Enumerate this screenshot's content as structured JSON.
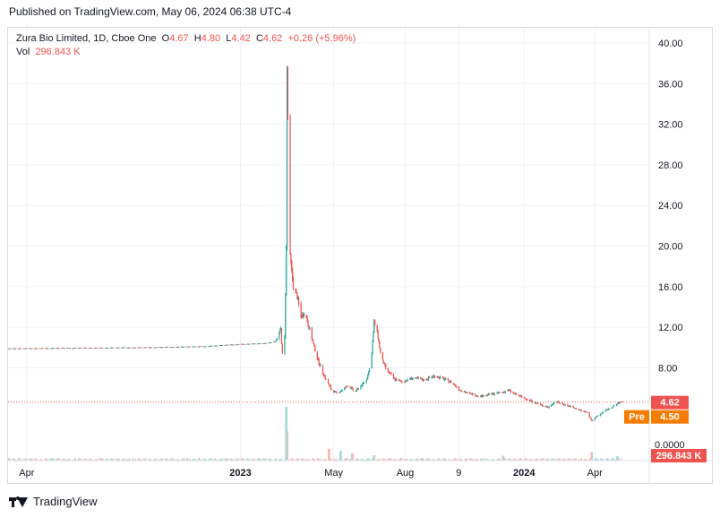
{
  "header": {
    "published": "Published on TradingView.com, May 06, 2024 06:38 UTC-4"
  },
  "legend": {
    "symbol": "Zura Bio Limited, 1D, Cboe One",
    "o_label": "O",
    "o_value": "4.67",
    "h_label": "H",
    "h_value": "4.80",
    "l_label": "L",
    "l_value": "4.42",
    "c_label": "C",
    "c_value": "4.62",
    "change": "+0.26 (+5.96%)",
    "vol_label": "Vol",
    "vol_value": "296.843 K"
  },
  "footer": {
    "brand": "TradingView"
  },
  "colors": {
    "up": "#26a69a",
    "down": "#ef5350",
    "premarket": "#f57c00",
    "grid": "#f0f3fa",
    "axis_text": "#131722"
  },
  "chart_data": {
    "type": "candlestick",
    "y_axis": {
      "ticks": [
        "40.00",
        "36.00",
        "32.00",
        "28.00",
        "24.00",
        "20.00",
        "16.00",
        "12.00",
        "8.00"
      ],
      "range": [
        0,
        41
      ],
      "volume_zero_label": "0.0000"
    },
    "x_axis": {
      "tick_labels": [
        {
          "label": "Apr",
          "date": "2022-04-01",
          "bold": false
        },
        {
          "label": "2023",
          "date": "2023-01-01",
          "bold": true
        },
        {
          "label": "May",
          "date": "2023-05-01",
          "bold": false
        },
        {
          "label": "Aug",
          "date": "2023-08-01",
          "bold": false
        },
        {
          "label": "9",
          "date": "2023-10-09",
          "bold": false
        },
        {
          "label": "2024",
          "date": "2024-01-01",
          "bold": true
        },
        {
          "label": "Apr",
          "date": "2024-04-01",
          "bold": false
        }
      ],
      "range": [
        "2022-03-08",
        "2024-06-10"
      ]
    },
    "last_price": {
      "label": "4.62",
      "value": 4.62
    },
    "premarket": {
      "tag": "Pre",
      "label": "4.50",
      "value": 4.5
    },
    "volume_label": "296.843 K",
    "price_path": [
      [
        "2022-03-08",
        9.9
      ],
      [
        "2022-06-01",
        9.95
      ],
      [
        "2022-09-01",
        10.0
      ],
      [
        "2022-11-15",
        10.1
      ],
      [
        "2022-12-25",
        10.3
      ],
      [
        "2023-02-01",
        10.4
      ],
      [
        "2023-02-15",
        10.6
      ],
      [
        "2023-02-22",
        11.8
      ],
      [
        "2023-02-25",
        8.0
      ],
      [
        "2023-02-27",
        11.0
      ],
      [
        "2023-03-01",
        20.0
      ],
      [
        "2023-03-02",
        37.5
      ],
      [
        "2023-03-04",
        28.0
      ],
      [
        "2023-03-06",
        19.0
      ],
      [
        "2023-03-10",
        16.0
      ],
      [
        "2023-03-15",
        15.0
      ],
      [
        "2023-03-20",
        13.0
      ],
      [
        "2023-03-25",
        13.5
      ],
      [
        "2023-03-30",
        12.0
      ],
      [
        "2023-04-06",
        10.0
      ],
      [
        "2023-04-12",
        8.5
      ],
      [
        "2023-04-20",
        7.0
      ],
      [
        "2023-04-28",
        5.8
      ],
      [
        "2023-05-05",
        5.5
      ],
      [
        "2023-05-12",
        5.8
      ],
      [
        "2023-05-20",
        6.3
      ],
      [
        "2023-05-28",
        5.6
      ],
      [
        "2023-06-05",
        6.2
      ],
      [
        "2023-06-12",
        6.8
      ],
      [
        "2023-06-18",
        8.5
      ],
      [
        "2023-06-22",
        12.5
      ],
      [
        "2023-06-26",
        11.5
      ],
      [
        "2023-07-01",
        9.0
      ],
      [
        "2023-07-08",
        7.8
      ],
      [
        "2023-07-18",
        6.9
      ],
      [
        "2023-07-28",
        6.6
      ],
      [
        "2023-08-10",
        7.0
      ],
      [
        "2023-08-25",
        6.8
      ],
      [
        "2023-09-08",
        7.2
      ],
      [
        "2023-09-20",
        6.9
      ],
      [
        "2023-10-01",
        6.5
      ],
      [
        "2023-10-09",
        5.9
      ],
      [
        "2023-10-20",
        5.5
      ],
      [
        "2023-11-05",
        5.2
      ],
      [
        "2023-11-20",
        5.4
      ],
      [
        "2023-12-05",
        5.6
      ],
      [
        "2023-12-12",
        5.8
      ],
      [
        "2023-12-20",
        5.4
      ],
      [
        "2024-01-05",
        4.9
      ],
      [
        "2024-01-20",
        4.4
      ],
      [
        "2024-02-01",
        4.1
      ],
      [
        "2024-02-10",
        4.7
      ],
      [
        "2024-02-25",
        4.3
      ],
      [
        "2024-03-10",
        3.9
      ],
      [
        "2024-03-22",
        3.6
      ],
      [
        "2024-03-28",
        2.8
      ],
      [
        "2024-04-05",
        3.3
      ],
      [
        "2024-04-15",
        3.8
      ],
      [
        "2024-04-25",
        4.2
      ],
      [
        "2024-05-03",
        4.6
      ]
    ],
    "volume_spikes": [
      [
        "2023-03-01",
        1.0
      ],
      [
        "2023-03-02",
        0.55
      ],
      [
        "2023-04-25",
        0.22
      ],
      [
        "2023-05-10",
        0.18
      ],
      [
        "2023-05-25",
        0.14
      ],
      [
        "2023-06-22",
        0.1
      ],
      [
        "2023-12-05",
        0.09
      ],
      [
        "2024-03-28",
        0.16
      ],
      [
        "2024-04-30",
        0.08
      ]
    ]
  }
}
